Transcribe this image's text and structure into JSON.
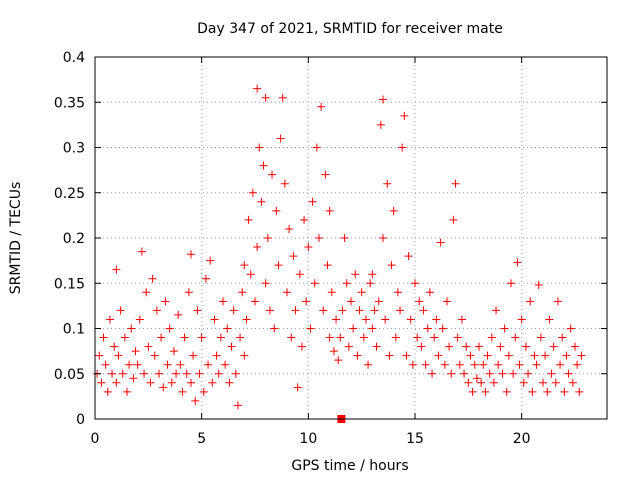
{
  "chart_data": {
    "type": "scatter",
    "title": "Day 347 of 2021, SRMTID for receiver mate",
    "xlabel": "GPS time / hours",
    "ylabel": "SRMTID / TECUs",
    "xlim": [
      0,
      24
    ],
    "ylim": [
      0,
      0.4
    ],
    "grid": true,
    "xticks": [
      0,
      5,
      10,
      15,
      20
    ],
    "yticks": [
      0,
      0.05,
      0.1,
      0.15,
      0.2,
      0.25,
      0.3,
      0.35,
      0.4
    ],
    "xtick_labels": [
      "0",
      "5",
      "10",
      "15",
      "20"
    ],
    "ytick_labels": [
      "0",
      "0.05",
      "0.1",
      "0.15",
      "0.2",
      "0.25",
      "0.3",
      "0.35",
      "0.4"
    ],
    "marker_color": "#ff0000",
    "series": [
      {
        "name": "SRMTID",
        "marker": "plus",
        "points": [
          [
            0.1,
            0.05
          ],
          [
            0.2,
            0.07
          ],
          [
            0.3,
            0.04
          ],
          [
            0.4,
            0.09
          ],
          [
            0.5,
            0.06
          ],
          [
            0.6,
            0.03
          ],
          [
            0.7,
            0.11
          ],
          [
            0.8,
            0.05
          ],
          [
            0.9,
            0.08
          ],
          [
            1.0,
            0.04
          ],
          [
            1.0,
            0.165
          ],
          [
            1.1,
            0.07
          ],
          [
            1.2,
            0.12
          ],
          [
            1.3,
            0.05
          ],
          [
            1.4,
            0.09
          ],
          [
            1.5,
            0.03
          ],
          [
            1.6,
            0.06
          ],
          [
            1.7,
            0.1
          ],
          [
            1.8,
            0.045
          ],
          [
            1.9,
            0.075
          ],
          [
            2.0,
            0.06
          ],
          [
            2.1,
            0.11
          ],
          [
            2.2,
            0.185
          ],
          [
            2.3,
            0.05
          ],
          [
            2.4,
            0.14
          ],
          [
            2.5,
            0.08
          ],
          [
            2.6,
            0.04
          ],
          [
            2.7,
            0.155
          ],
          [
            2.8,
            0.07
          ],
          [
            2.9,
            0.12
          ],
          [
            3.0,
            0.05
          ],
          [
            3.1,
            0.09
          ],
          [
            3.2,
            0.035
          ],
          [
            3.3,
            0.13
          ],
          [
            3.4,
            0.06
          ],
          [
            3.5,
            0.1
          ],
          [
            3.6,
            0.04
          ],
          [
            3.7,
            0.075
          ],
          [
            3.8,
            0.05
          ],
          [
            3.9,
            0.115
          ],
          [
            4.0,
            0.06
          ],
          [
            4.1,
            0.03
          ],
          [
            4.2,
            0.09
          ],
          [
            4.3,
            0.05
          ],
          [
            4.4,
            0.14
          ],
          [
            4.5,
            0.04
          ],
          [
            4.5,
            0.182
          ],
          [
            4.6,
            0.07
          ],
          [
            4.7,
            0.02
          ],
          [
            4.8,
            0.12
          ],
          [
            4.9,
            0.05
          ],
          [
            5.0,
            0.09
          ],
          [
            5.1,
            0.03
          ],
          [
            5.2,
            0.155
          ],
          [
            5.3,
            0.06
          ],
          [
            5.4,
            0.175
          ],
          [
            5.5,
            0.04
          ],
          [
            5.6,
            0.11
          ],
          [
            5.7,
            0.07
          ],
          [
            5.8,
            0.05
          ],
          [
            5.9,
            0.09
          ],
          [
            6.0,
            0.13
          ],
          [
            6.1,
            0.06
          ],
          [
            6.2,
            0.1
          ],
          [
            6.3,
            0.04
          ],
          [
            6.4,
            0.08
          ],
          [
            6.5,
            0.12
          ],
          [
            6.6,
            0.05
          ],
          [
            6.7,
            0.015
          ],
          [
            6.8,
            0.09
          ],
          [
            6.9,
            0.14
          ],
          [
            7.0,
            0.07
          ],
          [
            7.0,
            0.17
          ],
          [
            7.1,
            0.11
          ],
          [
            7.2,
            0.22
          ],
          [
            7.3,
            0.16
          ],
          [
            7.4,
            0.25
          ],
          [
            7.5,
            0.13
          ],
          [
            7.6,
            0.19
          ],
          [
            7.6,
            0.365
          ],
          [
            7.7,
            0.3
          ],
          [
            7.8,
            0.24
          ],
          [
            7.9,
            0.28
          ],
          [
            8.0,
            0.355
          ],
          [
            8.0,
            0.15
          ],
          [
            8.1,
            0.2
          ],
          [
            8.2,
            0.12
          ],
          [
            8.3,
            0.27
          ],
          [
            8.4,
            0.1
          ],
          [
            8.5,
            0.23
          ],
          [
            8.6,
            0.17
          ],
          [
            8.7,
            0.31
          ],
          [
            8.8,
            0.355
          ],
          [
            8.9,
            0.26
          ],
          [
            9.0,
            0.14
          ],
          [
            9.1,
            0.21
          ],
          [
            9.2,
            0.09
          ],
          [
            9.3,
            0.18
          ],
          [
            9.4,
            0.12
          ],
          [
            9.5,
            0.035
          ],
          [
            9.6,
            0.16
          ],
          [
            9.7,
            0.08
          ],
          [
            9.8,
            0.22
          ],
          [
            9.9,
            0.13
          ],
          [
            10.0,
            0.19
          ],
          [
            10.1,
            0.1
          ],
          [
            10.2,
            0.24
          ],
          [
            10.3,
            0.15
          ],
          [
            10.4,
            0.3
          ],
          [
            10.5,
            0.2
          ],
          [
            10.6,
            0.345
          ],
          [
            10.7,
            0.12
          ],
          [
            10.8,
            0.27
          ],
          [
            10.9,
            0.17
          ],
          [
            11.0,
            0.23
          ],
          [
            11.0,
            0.09
          ],
          [
            11.1,
            0.14
          ],
          [
            11.2,
            0.075
          ],
          [
            11.3,
            0.11
          ],
          [
            11.4,
            0.065
          ],
          [
            11.5,
            0.09
          ],
          [
            11.6,
            0.12
          ],
          [
            11.7,
            0.2
          ],
          [
            11.8,
            0.15
          ],
          [
            11.9,
            0.08
          ],
          [
            12.0,
            0.13
          ],
          [
            12.1,
            0.1
          ],
          [
            12.2,
            0.16
          ],
          [
            12.3,
            0.07
          ],
          [
            12.4,
            0.12
          ],
          [
            12.5,
            0.14
          ],
          [
            12.6,
            0.09
          ],
          [
            12.7,
            0.11
          ],
          [
            12.8,
            0.06
          ],
          [
            12.9,
            0.15
          ],
          [
            13.0,
            0.1
          ],
          [
            13.0,
            0.16
          ],
          [
            13.1,
            0.12
          ],
          [
            13.2,
            0.08
          ],
          [
            13.3,
            0.13
          ],
          [
            13.4,
            0.325
          ],
          [
            13.5,
            0.2
          ],
          [
            13.5,
            0.353
          ],
          [
            13.6,
            0.11
          ],
          [
            13.7,
            0.26
          ],
          [
            13.8,
            0.07
          ],
          [
            13.9,
            0.17
          ],
          [
            14.0,
            0.23
          ],
          [
            14.1,
            0.09
          ],
          [
            14.2,
            0.14
          ],
          [
            14.3,
            0.12
          ],
          [
            14.4,
            0.3
          ],
          [
            14.5,
            0.335
          ],
          [
            14.6,
            0.07
          ],
          [
            14.7,
            0.18
          ],
          [
            14.8,
            0.11
          ],
          [
            14.9,
            0.06
          ],
          [
            15.0,
            0.15
          ],
          [
            15.1,
            0.09
          ],
          [
            15.2,
            0.13
          ],
          [
            15.3,
            0.08
          ],
          [
            15.4,
            0.12
          ],
          [
            15.5,
            0.06
          ],
          [
            15.6,
            0.1
          ],
          [
            15.7,
            0.14
          ],
          [
            15.8,
            0.05
          ],
          [
            15.9,
            0.09
          ],
          [
            16.0,
            0.11
          ],
          [
            16.1,
            0.07
          ],
          [
            16.2,
            0.195
          ],
          [
            16.3,
            0.1
          ],
          [
            16.4,
            0.06
          ],
          [
            16.5,
            0.13
          ],
          [
            16.6,
            0.08
          ],
          [
            16.7,
            0.05
          ],
          [
            16.8,
            0.22
          ],
          [
            16.9,
            0.26
          ],
          [
            17.0,
            0.09
          ],
          [
            17.1,
            0.06
          ],
          [
            17.2,
            0.11
          ],
          [
            17.3,
            0.05
          ],
          [
            17.4,
            0.08
          ],
          [
            17.5,
            0.04
          ],
          [
            17.6,
            0.07
          ],
          [
            17.7,
            0.03
          ],
          [
            17.8,
            0.06
          ],
          [
            17.9,
            0.045
          ],
          [
            18.0,
            0.08
          ],
          [
            18.1,
            0.04
          ],
          [
            18.2,
            0.06
          ],
          [
            18.3,
            0.03
          ],
          [
            18.4,
            0.07
          ],
          [
            18.5,
            0.05
          ],
          [
            18.6,
            0.09
          ],
          [
            18.7,
            0.04
          ],
          [
            18.8,
            0.12
          ],
          [
            18.9,
            0.06
          ],
          [
            19.0,
            0.08
          ],
          [
            19.1,
            0.05
          ],
          [
            19.2,
            0.1
          ],
          [
            19.3,
            0.03
          ],
          [
            19.4,
            0.07
          ],
          [
            19.5,
            0.15
          ],
          [
            19.6,
            0.05
          ],
          [
            19.7,
            0.09
          ],
          [
            19.8,
            0.173
          ],
          [
            19.9,
            0.06
          ],
          [
            20.0,
            0.11
          ],
          [
            20.1,
            0.04
          ],
          [
            20.2,
            0.08
          ],
          [
            20.3,
            0.05
          ],
          [
            20.4,
            0.13
          ],
          [
            20.5,
            0.03
          ],
          [
            20.6,
            0.07
          ],
          [
            20.7,
            0.06
          ],
          [
            20.8,
            0.148
          ],
          [
            20.9,
            0.09
          ],
          [
            21.0,
            0.04
          ],
          [
            21.1,
            0.07
          ],
          [
            21.2,
            0.03
          ],
          [
            21.3,
            0.11
          ],
          [
            21.4,
            0.05
          ],
          [
            21.5,
            0.08
          ],
          [
            21.6,
            0.04
          ],
          [
            21.7,
            0.13
          ],
          [
            21.8,
            0.06
          ],
          [
            21.9,
            0.09
          ],
          [
            22.0,
            0.03
          ],
          [
            22.1,
            0.07
          ],
          [
            22.2,
            0.05
          ],
          [
            22.3,
            0.1
          ],
          [
            22.4,
            0.04
          ],
          [
            22.5,
            0.08
          ],
          [
            22.6,
            0.06
          ],
          [
            22.7,
            0.03
          ],
          [
            22.8,
            0.07
          ]
        ]
      },
      {
        "name": "marker",
        "marker": "square",
        "points": [
          [
            11.55,
            0.0
          ]
        ]
      }
    ]
  }
}
